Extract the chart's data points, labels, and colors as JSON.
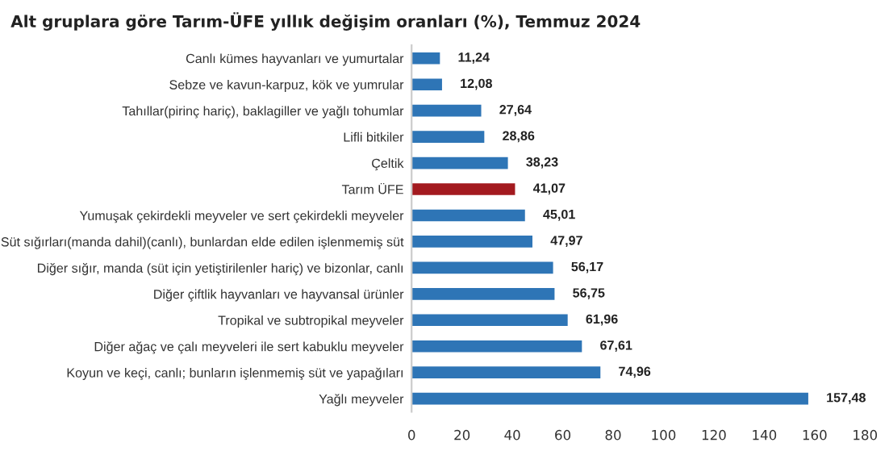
{
  "chart_data": {
    "type": "bar",
    "orientation": "horizontal",
    "title": "Alt gruplara göre Tarım-ÜFE yıllık değişim oranları (%), Temmuz 2024",
    "categories": [
      "Canlı kümes hayvanları ve yumurtalar",
      "Sebze ve kavun-karpuz, kök ve yumrular",
      "Tahıllar(pirinç hariç), baklagiller ve yağlı tohumlar",
      "Lifli bitkiler",
      "Çeltik",
      "Tarım ÜFE",
      "Yumuşak çekirdekli meyveler ve sert çekirdekli meyveler",
      "Süt sığırları(manda dahil)(canlı), bunlardan elde edilen işlenmemiş süt",
      "Diğer sığır, manda (süt için yetiştirilenler hariç) ve bizonlar, canlı",
      "Diğer çiftlik hayvanları ve hayvansal ürünler",
      "Tropikal ve subtropikal meyveler",
      "Diğer ağaç ve çalı meyveleri ile sert kabuklu meyveler",
      "Koyun ve keçi, canlı; bunların işlenmemiş süt ve yapağıları",
      "Yağlı meyveler"
    ],
    "values": [
      11.24,
      12.08,
      27.64,
      28.86,
      38.23,
      41.07,
      45.01,
      47.97,
      56.17,
      56.75,
      61.96,
      67.61,
      74.96,
      157.48
    ],
    "value_labels": [
      "11,24",
      "12,08",
      "27,64",
      "28,86",
      "38,23",
      "41,07",
      "45,01",
      "47,97",
      "56,17",
      "56,75",
      "61,96",
      "67,61",
      "74,96",
      "157,48"
    ],
    "colors": [
      "#2e75b6",
      "#2e75b6",
      "#2e75b6",
      "#2e75b6",
      "#2e75b6",
      "#a31a1f",
      "#2e75b6",
      "#2e75b6",
      "#2e75b6",
      "#2e75b6",
      "#2e75b6",
      "#2e75b6",
      "#2e75b6",
      "#2e75b6"
    ],
    "xlim": [
      0,
      180
    ],
    "xticks": [
      0,
      20,
      40,
      60,
      80,
      100,
      120,
      140,
      160,
      180
    ],
    "grid": false,
    "legend": false
  }
}
